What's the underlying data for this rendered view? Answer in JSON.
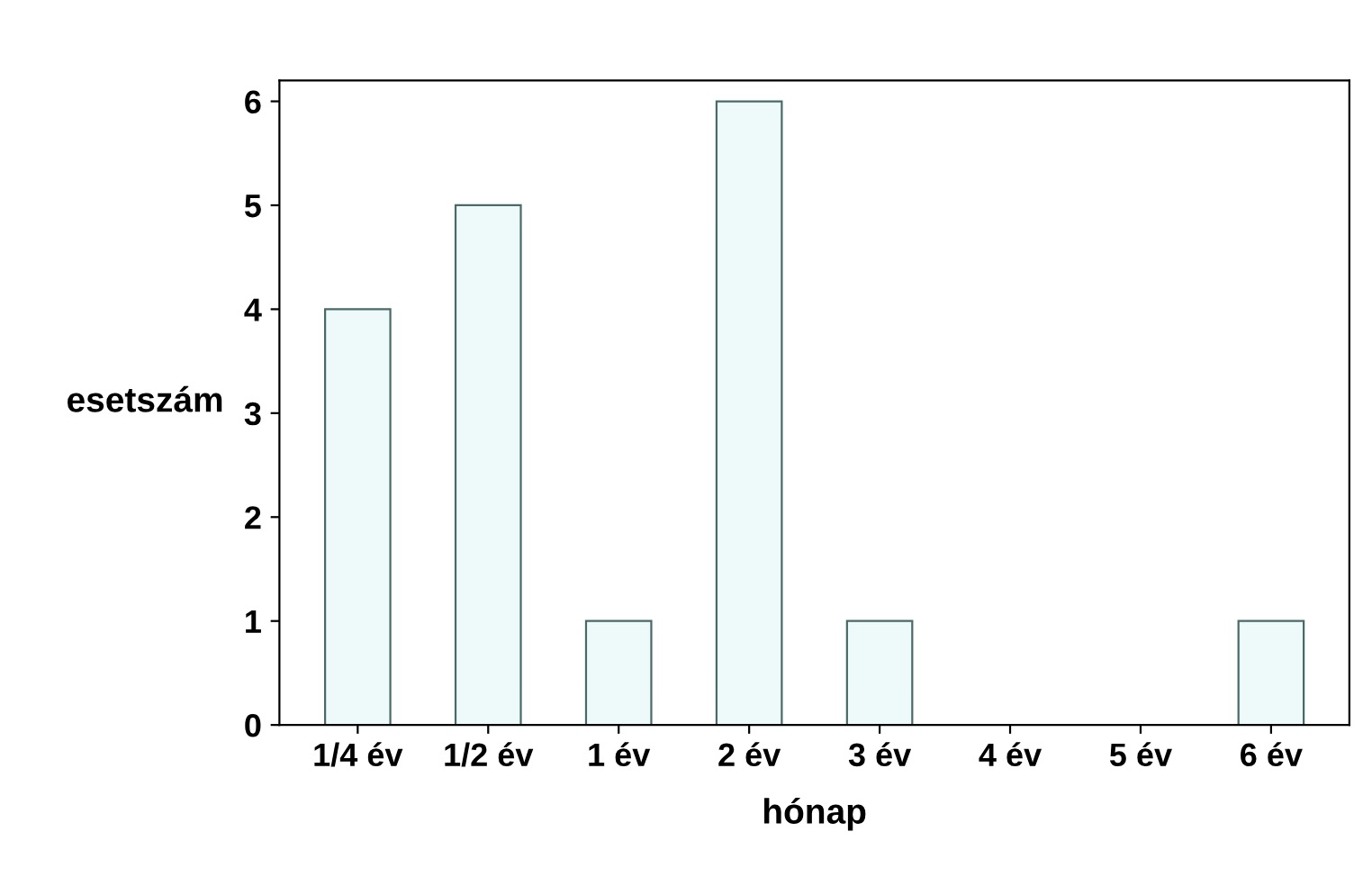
{
  "chart_data": {
    "type": "bar",
    "xlabel": "hónap",
    "ylabel": "esetszám",
    "categories": [
      "1/4 év",
      "1/2 év",
      "1 év",
      "2 év",
      "3 év",
      "4 év",
      "5 év",
      "6 év"
    ],
    "values": [
      4,
      5,
      1,
      6,
      1,
      0,
      0,
      1
    ],
    "color": "#eefafa",
    "ylim": [
      0,
      6.2
    ],
    "yticks": [
      0,
      1,
      2,
      3,
      4,
      5,
      6
    ],
    "grid": false,
    "legend": false
  }
}
